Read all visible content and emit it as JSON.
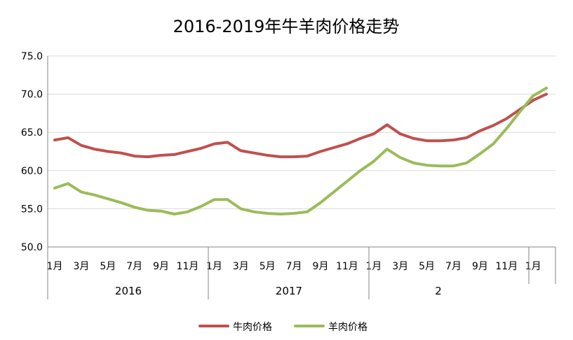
{
  "chart_data": {
    "type": "line",
    "title": "2016-2019年牛羊肉价格走势",
    "xlabel": "",
    "ylabel": "",
    "ylim": [
      50,
      75
    ],
    "yticks": [
      "75.0",
      "70.0",
      "65.0",
      "60.0",
      "55.0",
      "50.0"
    ],
    "grid": true,
    "legend_position": "bottom",
    "x_tick_labels": [
      "1月",
      "3月",
      "5月",
      "7月",
      "9月",
      "11月",
      "1月",
      "3月",
      "5月",
      "7月",
      "9月",
      "11月",
      "1月",
      "3月",
      "5月",
      "7月",
      "9月",
      "11月",
      "1月"
    ],
    "year_groups": [
      "2016",
      "2017",
      "2"
    ],
    "series": [
      {
        "name": "牛肉价格",
        "color": "#C0504D",
        "values": [
          64.0,
          64.3,
          63.3,
          62.8,
          62.5,
          62.3,
          61.9,
          61.8,
          62.0,
          62.1,
          62.5,
          62.9,
          63.5,
          63.7,
          62.6,
          62.3,
          62.0,
          61.8,
          61.8,
          61.9,
          62.5,
          63.0,
          63.5,
          64.2,
          64.8,
          66.0,
          64.8,
          64.2,
          63.9,
          63.9,
          64.0,
          64.3,
          65.2,
          65.9,
          66.8,
          68.0,
          69.2,
          70.0
        ]
      },
      {
        "name": "羊肉价格",
        "color": "#9BBB59",
        "values": [
          57.7,
          58.3,
          57.2,
          56.8,
          56.3,
          55.8,
          55.2,
          54.8,
          54.7,
          54.3,
          54.6,
          55.3,
          56.2,
          56.2,
          55.0,
          54.6,
          54.4,
          54.3,
          54.4,
          54.6,
          55.8,
          57.2,
          58.6,
          60.0,
          61.2,
          62.8,
          61.7,
          61.0,
          60.7,
          60.6,
          60.6,
          61.0,
          62.2,
          63.5,
          65.5,
          67.7,
          69.8,
          70.8
        ]
      }
    ]
  }
}
